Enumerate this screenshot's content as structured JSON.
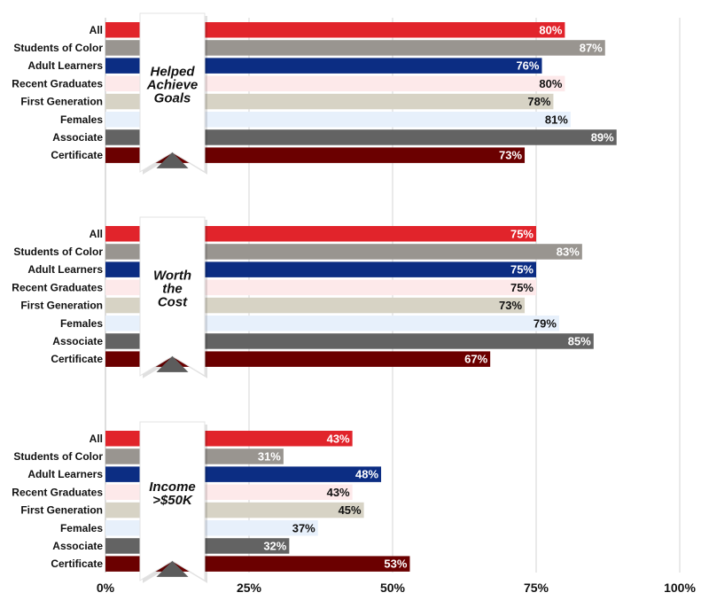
{
  "chart_data": {
    "type": "bar",
    "orientation": "horizontal",
    "x_ticks": [
      "0%",
      "25%",
      "50%",
      "75%",
      "100%"
    ],
    "xlim": [
      0,
      100
    ],
    "grid": true,
    "categories": [
      "All",
      "Students of Color",
      "Adult Learners",
      "Recent Graduates",
      "First Generation",
      "Females",
      "Associate",
      "Certificate"
    ],
    "category_colors": [
      "#e1242b",
      "#999590",
      "#0c2d83",
      "#fde9ea",
      "#d7d3c5",
      "#e7f0fb",
      "#636363",
      "#6b0000"
    ],
    "value_label_colors": [
      "#ffffff",
      "#ffffff",
      "#ffffff",
      "#111111",
      "#111111",
      "#111111",
      "#ffffff",
      "#ffffff"
    ],
    "panels": [
      {
        "title_lines": [
          "Helped",
          "Achieve",
          "Goals"
        ],
        "values": [
          80,
          87,
          76,
          80,
          78,
          81,
          89,
          73
        ],
        "labels": [
          "80%",
          "87%",
          "76%",
          "80%",
          "78%",
          "81%",
          "89%",
          "73%"
        ]
      },
      {
        "title_lines": [
          "Worth",
          "the",
          "Cost"
        ],
        "values": [
          75,
          83,
          75,
          75,
          73,
          79,
          85,
          67
        ],
        "labels": [
          "75%",
          "83%",
          "75%",
          "75%",
          "73%",
          "79%",
          "85%",
          "67%"
        ]
      },
      {
        "title_lines": [
          "Income",
          ">$50K"
        ],
        "values": [
          43,
          31,
          48,
          43,
          45,
          37,
          32,
          53
        ],
        "labels": [
          "43%",
          "31%",
          "48%",
          "43%",
          "45%",
          "37%",
          "32%",
          "53%"
        ]
      }
    ]
  }
}
